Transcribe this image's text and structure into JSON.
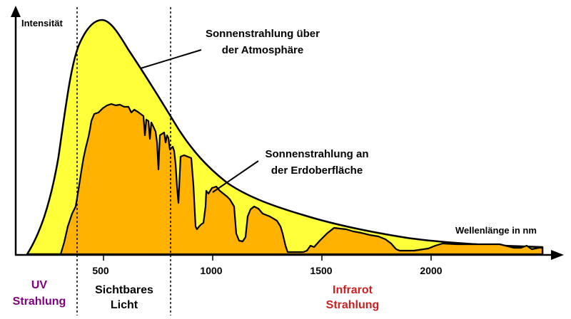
{
  "diagram": {
    "y_axis_label": "Intensität",
    "x_axis_label": "Wellenlänge in nm",
    "x_ticks": [
      "500",
      "1000",
      "1500",
      "2000"
    ],
    "curve_top_label": [
      "Sonnenstrahlung über",
      "der Atmosphäre"
    ],
    "curve_bottom_label": [
      "Sonnenstrahlung an",
      "der Erdoberfläche"
    ],
    "regions": {
      "uv": [
        "UV",
        "Strahlung"
      ],
      "visible": [
        "Sichtbares",
        "Licht"
      ],
      "infrared": [
        "Infrarot",
        "Strahlung"
      ]
    },
    "colors": {
      "top_fill": "#ffff3a",
      "bottom_fill": "#ffb300",
      "uv_text": "#800080",
      "infrared_text": "#cc1f1f",
      "outline": "#000000"
    }
  }
}
